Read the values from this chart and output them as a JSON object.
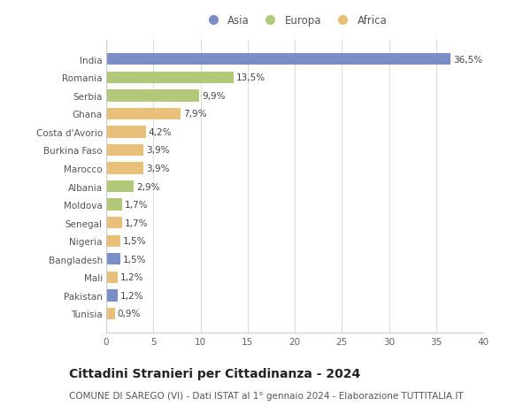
{
  "countries": [
    "India",
    "Romania",
    "Serbia",
    "Ghana",
    "Costa d'Avorio",
    "Burkina Faso",
    "Marocco",
    "Albania",
    "Moldova",
    "Senegal",
    "Nigeria",
    "Bangladesh",
    "Mali",
    "Pakistan",
    "Tunisia"
  ],
  "values": [
    36.5,
    13.5,
    9.9,
    7.9,
    4.2,
    3.9,
    3.9,
    2.9,
    1.7,
    1.7,
    1.5,
    1.5,
    1.2,
    1.2,
    0.9
  ],
  "labels": [
    "36,5%",
    "13,5%",
    "9,9%",
    "7,9%",
    "4,2%",
    "3,9%",
    "3,9%",
    "2,9%",
    "1,7%",
    "1,7%",
    "1,5%",
    "1,5%",
    "1,2%",
    "1,2%",
    "0,9%"
  ],
  "continents": [
    "Asia",
    "Europa",
    "Europa",
    "Africa",
    "Africa",
    "Africa",
    "Africa",
    "Europa",
    "Europa",
    "Africa",
    "Africa",
    "Asia",
    "Africa",
    "Asia",
    "Africa"
  ],
  "continent_colors": {
    "Asia": "#7b8ec8",
    "Europa": "#b0c878",
    "Africa": "#e8c07a"
  },
  "legend_order": [
    "Asia",
    "Europa",
    "Africa"
  ],
  "title": "Cittadini Stranieri per Cittadinanza - 2024",
  "subtitle": "COMUNE DI SAREGO (VI) - Dati ISTAT al 1° gennaio 2024 - Elaborazione TUTTITALIA.IT",
  "xlim": [
    0,
    40
  ],
  "xticks": [
    0,
    5,
    10,
    15,
    20,
    25,
    30,
    35,
    40
  ],
  "background_color": "#ffffff",
  "grid_color": "#dddddd",
  "title_fontsize": 10,
  "subtitle_fontsize": 7.5,
  "bar_height": 0.65,
  "label_fontsize": 7.5,
  "tick_fontsize": 7.5,
  "legend_fontsize": 8.5
}
